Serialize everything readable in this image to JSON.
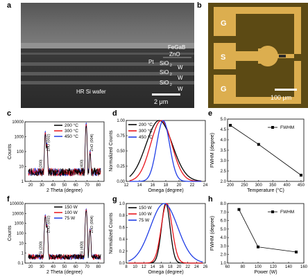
{
  "panels": {
    "a": {
      "label": "a"
    },
    "b": {
      "label": "b"
    },
    "c": {
      "label": "c"
    },
    "d": {
      "label": "d"
    },
    "e": {
      "label": "e"
    },
    "f": {
      "label": "f"
    },
    "g": {
      "label": "g"
    },
    "h": {
      "label": "h"
    }
  },
  "sem": {
    "layers": {
      "fegab": "FeGaB",
      "zno": "ZnO",
      "pt": "Pt",
      "sio2_w_1": "SiO",
      "sio2_w_2": "SiO",
      "sio2_w_3": "SiO",
      "sub": "2",
      "w1": "W",
      "w2": "W",
      "w3": "W"
    },
    "wafer": "HR Si wafer",
    "scalebar": "2 μm"
  },
  "device": {
    "g_top": "G",
    "s": "S",
    "g_bottom": "G",
    "scalebar": "100 μm"
  },
  "colors": {
    "black": "#000000",
    "red": "#e8141b",
    "blue": "#1f3de6",
    "gold": "#dcae4f",
    "substrate": "#5c4a14"
  },
  "chart_data": [
    {
      "panel": "c",
      "type": "line",
      "xlabel": "2 Theta (degree)",
      "ylabel": "Counts",
      "xlim": [
        15,
        85
      ],
      "ylim_log": [
        1,
        10000
      ],
      "yscale": "log",
      "xticks": [
        20,
        30,
        40,
        50,
        60,
        70,
        80
      ],
      "yticks": [
        "1",
        "10",
        "100",
        "1000",
        "10000"
      ],
      "series": [
        {
          "name": "200 °C",
          "color": "#000000"
        },
        {
          "name": "300 °C",
          "color": "#e8141b"
        },
        {
          "name": "450 °C",
          "color": "#1f3de6"
        }
      ],
      "peaks": [
        {
          "label": "Si (200)",
          "x": 33.0
        },
        {
          "label": "ZnO (002)",
          "x": 34.4
        },
        {
          "label": "Si (400)",
          "x": 69.2
        },
        {
          "label": "ZnO (004)",
          "x": 72.6
        }
      ]
    },
    {
      "panel": "d",
      "type": "line",
      "xlabel": "Omega (degree)",
      "ylabel": "Normalized Counts",
      "xlim": [
        12,
        24
      ],
      "ylim": [
        0,
        1.0
      ],
      "xticks": [
        12,
        14,
        16,
        18,
        20,
        22,
        24
      ],
      "yticks": [
        "0.00",
        "0.25",
        "0.50",
        "0.75",
        "1.00"
      ],
      "series": [
        {
          "name": "200 °C",
          "color": "#000000",
          "center": 17.0,
          "fwhm": 4.7
        },
        {
          "name": "300 °C",
          "color": "#e8141b",
          "center": 17.3,
          "fwhm": 3.8
        },
        {
          "name": "450 °C",
          "color": "#1f3de6",
          "center": 17.6,
          "fwhm": 2.3
        }
      ]
    },
    {
      "panel": "e",
      "type": "line",
      "xlabel": "Temperature (°C)",
      "ylabel": "FWHM (degree)",
      "legend": "FWHM",
      "xlim": [
        190,
        460
      ],
      "ylim": [
        2.0,
        5.0
      ],
      "xticks": [
        200,
        250,
        300,
        350,
        400,
        450
      ],
      "yticks": [
        "2.0",
        "2.5",
        "3.0",
        "3.5",
        "4.0",
        "4.5",
        "5.0"
      ],
      "x": [
        200,
        300,
        450
      ],
      "y": [
        4.7,
        3.78,
        2.3
      ]
    },
    {
      "panel": "f",
      "type": "line",
      "xlabel": "2 Theta (degree)",
      "ylabel": "Counts",
      "xlim": [
        15,
        85
      ],
      "yscale": "log",
      "xticks": [
        20,
        30,
        40,
        50,
        60,
        70,
        80
      ],
      "yticks": [
        "0.1",
        "1",
        "10",
        "100",
        "1000",
        "10000",
        "100000"
      ],
      "series": [
        {
          "name": "150 W",
          "color": "#000000"
        },
        {
          "name": "100 W",
          "color": "#e8141b"
        },
        {
          "name": "75 W",
          "color": "#1f3de6"
        }
      ],
      "peaks": [
        {
          "label": "Si (200)",
          "x": 33.0
        },
        {
          "label": "ZnO (002)",
          "x": 34.4
        },
        {
          "label": "Si (400)",
          "x": 69.2
        },
        {
          "label": "ZnO (004)",
          "x": 72.6
        }
      ]
    },
    {
      "panel": "g",
      "type": "line",
      "xlabel": "Omega (degree)",
      "ylabel": "Normalized Counts",
      "xlim": [
        8,
        26
      ],
      "ylim": [
        0,
        1.0
      ],
      "xticks": [
        8,
        10,
        12,
        14,
        16,
        18,
        20,
        22,
        24,
        26
      ],
      "yticks": [
        "0.0",
        "0.2",
        "0.4",
        "0.6",
        "0.8",
        "1.0"
      ],
      "series": [
        {
          "name": "150 W",
          "color": "#000000",
          "center": 17.0,
          "fwhm": 2.3
        },
        {
          "name": "100 W",
          "color": "#e8141b",
          "center": 17.2,
          "fwhm": 2.9
        },
        {
          "name": "75 W",
          "color": "#1f3de6",
          "center": 16.6,
          "fwhm": 7.3
        }
      ]
    },
    {
      "panel": "h",
      "type": "line",
      "xlabel": "Power (W)",
      "ylabel": "FWHM (degree)",
      "legend": "FWHM",
      "xlim": [
        60,
        160
      ],
      "ylim": [
        1.0,
        8.0
      ],
      "xticks": [
        60,
        80,
        100,
        120,
        140,
        160
      ],
      "yticks": [
        "1.0",
        "2.0",
        "3.0",
        "4.0",
        "5.0",
        "6.0",
        "7.0",
        "8.0"
      ],
      "x": [
        75,
        100,
        150
      ],
      "y": [
        7.3,
        2.9,
        2.3
      ]
    }
  ]
}
